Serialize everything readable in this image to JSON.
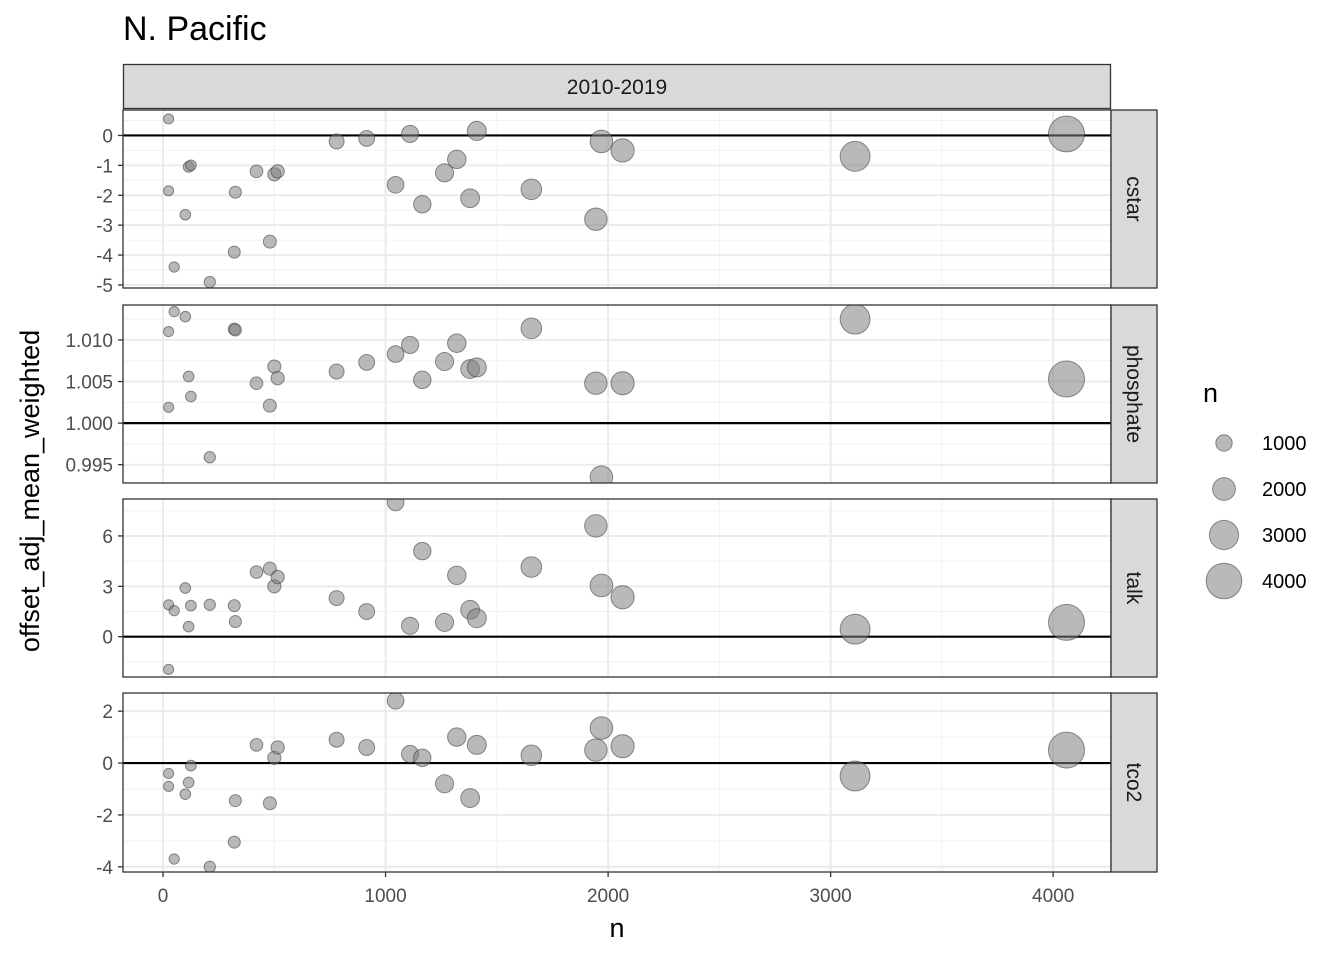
{
  "chart_data": {
    "type": "scatter",
    "title": "N. Pacific",
    "column_strip": "2010-2019",
    "xlabel": "n",
    "ylabel": "offset_adj_mean_weighted",
    "xlim": [
      -180,
      4260
    ],
    "x_ticks": [
      0,
      1000,
      2000,
      3000,
      4000
    ],
    "x_minor_ticks": [
      500,
      1500,
      2500,
      3500
    ],
    "grid": true,
    "reference_line_y": {
      "cstar": 0,
      "phosphate": 1.0,
      "talk": 0,
      "tco2": 0
    },
    "point_color": "#7f7f7f",
    "point_alpha": 0.55,
    "size_legend": {
      "title": "n",
      "values": [
        1000,
        2000,
        3000,
        4000
      ],
      "labels": [
        "1000",
        "2000",
        "3000",
        "4000"
      ]
    },
    "panels": [
      {
        "strip": "cstar",
        "ylim": [
          -5.1,
          0.85
        ],
        "y_ticks": [
          0,
          -1,
          -2,
          -3,
          -4,
          -5
        ],
        "y_tick_labels": [
          "0",
          "-1",
          "-2",
          "-3",
          "-4",
          "-5"
        ],
        "y_minor_ticks": [
          0.5,
          -0.5,
          -1.5,
          -2.5,
          -3.5,
          -4.5
        ],
        "points": [
          {
            "n": 25,
            "y": 0.55
          },
          {
            "n": 25,
            "y": -1.85
          },
          {
            "n": 50,
            "y": -4.4
          },
          {
            "n": 100,
            "y": -2.65
          },
          {
            "n": 115,
            "y": -1.05
          },
          {
            "n": 125,
            "y": -1.0
          },
          {
            "n": 210,
            "y": -4.9
          },
          {
            "n": 320,
            "y": -3.9
          },
          {
            "n": 325,
            "y": -1.9
          },
          {
            "n": 420,
            "y": -1.2
          },
          {
            "n": 480,
            "y": -3.55
          },
          {
            "n": 500,
            "y": -1.3
          },
          {
            "n": 515,
            "y": -1.2
          },
          {
            "n": 780,
            "y": -0.2
          },
          {
            "n": 915,
            "y": -0.1
          },
          {
            "n": 1045,
            "y": -1.65
          },
          {
            "n": 1110,
            "y": 0.05
          },
          {
            "n": 1165,
            "y": -2.3
          },
          {
            "n": 1265,
            "y": -1.25
          },
          {
            "n": 1320,
            "y": -0.8
          },
          {
            "n": 1380,
            "y": -2.1
          },
          {
            "n": 1410,
            "y": 0.15
          },
          {
            "n": 1655,
            "y": -1.8
          },
          {
            "n": 1945,
            "y": -2.8
          },
          {
            "n": 1970,
            "y": -0.2
          },
          {
            "n": 2065,
            "y": -0.5
          },
          {
            "n": 3110,
            "y": -0.7
          },
          {
            "n": 4060,
            "y": 0.05
          }
        ]
      },
      {
        "strip": "phosphate",
        "ylim": [
          0.9928,
          1.0142
        ],
        "y_ticks": [
          0.995,
          1.0,
          1.005,
          1.01
        ],
        "y_tick_labels": [
          "0.995",
          "1.000",
          "1.005",
          "1.010"
        ],
        "y_minor_ticks": [
          0.9975,
          1.0025,
          1.0075,
          1.0125
        ],
        "points": [
          {
            "n": 25,
            "y": 1.011
          },
          {
            "n": 25,
            "y": 1.0019
          },
          {
            "n": 50,
            "y": 1.0134
          },
          {
            "n": 100,
            "y": 1.0128
          },
          {
            "n": 115,
            "y": 1.0056
          },
          {
            "n": 125,
            "y": 1.0032
          },
          {
            "n": 210,
            "y": 0.9959
          },
          {
            "n": 320,
            "y": 1.0113
          },
          {
            "n": 325,
            "y": 1.0112
          },
          {
            "n": 420,
            "y": 1.0048
          },
          {
            "n": 480,
            "y": 1.0021
          },
          {
            "n": 500,
            "y": 1.0068
          },
          {
            "n": 515,
            "y": 1.0054
          },
          {
            "n": 780,
            "y": 1.0062
          },
          {
            "n": 915,
            "y": 1.0073
          },
          {
            "n": 1045,
            "y": 1.0083
          },
          {
            "n": 1110,
            "y": 1.0094
          },
          {
            "n": 1165,
            "y": 1.0052
          },
          {
            "n": 1265,
            "y": 1.0074
          },
          {
            "n": 1320,
            "y": 1.0096
          },
          {
            "n": 1380,
            "y": 1.0065
          },
          {
            "n": 1410,
            "y": 1.0067
          },
          {
            "n": 1655,
            "y": 1.0114
          },
          {
            "n": 1945,
            "y": 1.0048
          },
          {
            "n": 1970,
            "y": 0.9935
          },
          {
            "n": 2065,
            "y": 1.0048
          },
          {
            "n": 3110,
            "y": 1.0125
          },
          {
            "n": 4060,
            "y": 1.0053
          }
        ]
      },
      {
        "strip": "talk",
        "ylim": [
          -2.4,
          8.2
        ],
        "y_ticks": [
          0,
          3,
          6
        ],
        "y_tick_labels": [
          "0",
          "3",
          "6"
        ],
        "y_minor_ticks": [
          -1.5,
          1.5,
          4.5,
          7.5
        ],
        "points": [
          {
            "n": 25,
            "y": -1.95
          },
          {
            "n": 25,
            "y": 1.9
          },
          {
            "n": 50,
            "y": 1.55
          },
          {
            "n": 100,
            "y": 2.9
          },
          {
            "n": 115,
            "y": 0.6
          },
          {
            "n": 125,
            "y": 1.85
          },
          {
            "n": 210,
            "y": 1.9
          },
          {
            "n": 320,
            "y": 1.85
          },
          {
            "n": 325,
            "y": 0.9
          },
          {
            "n": 420,
            "y": 3.85
          },
          {
            "n": 480,
            "y": 4.05
          },
          {
            "n": 500,
            "y": 3.0
          },
          {
            "n": 515,
            "y": 3.55
          },
          {
            "n": 780,
            "y": 2.3
          },
          {
            "n": 915,
            "y": 1.5
          },
          {
            "n": 1045,
            "y": 8.0
          },
          {
            "n": 1110,
            "y": 0.65
          },
          {
            "n": 1165,
            "y": 5.1
          },
          {
            "n": 1265,
            "y": 0.85
          },
          {
            "n": 1320,
            "y": 3.65
          },
          {
            "n": 1380,
            "y": 1.6
          },
          {
            "n": 1410,
            "y": 1.1
          },
          {
            "n": 1655,
            "y": 4.15
          },
          {
            "n": 1945,
            "y": 6.6
          },
          {
            "n": 1970,
            "y": 3.05
          },
          {
            "n": 2065,
            "y": 2.35
          },
          {
            "n": 3110,
            "y": 0.45
          },
          {
            "n": 4060,
            "y": 0.85
          }
        ]
      },
      {
        "strip": "tco2",
        "ylim": [
          -4.2,
          2.7
        ],
        "y_ticks": [
          -4,
          -2,
          0,
          2
        ],
        "y_tick_labels": [
          "-4",
          "-2",
          "0",
          "2"
        ],
        "y_minor_ticks": [
          -3,
          -1,
          1
        ],
        "points": [
          {
            "n": 25,
            "y": -0.4
          },
          {
            "n": 25,
            "y": -0.9
          },
          {
            "n": 50,
            "y": -3.7
          },
          {
            "n": 100,
            "y": -1.2
          },
          {
            "n": 115,
            "y": -0.75
          },
          {
            "n": 125,
            "y": -0.1
          },
          {
            "n": 210,
            "y": -4.0
          },
          {
            "n": 320,
            "y": -3.05
          },
          {
            "n": 325,
            "y": -1.45
          },
          {
            "n": 420,
            "y": 0.7
          },
          {
            "n": 480,
            "y": -1.55
          },
          {
            "n": 500,
            "y": 0.2
          },
          {
            "n": 515,
            "y": 0.6
          },
          {
            "n": 780,
            "y": 0.9
          },
          {
            "n": 915,
            "y": 0.6
          },
          {
            "n": 1045,
            "y": 2.4
          },
          {
            "n": 1110,
            "y": 0.35
          },
          {
            "n": 1165,
            "y": 0.2
          },
          {
            "n": 1265,
            "y": -0.8
          },
          {
            "n": 1320,
            "y": 1.0
          },
          {
            "n": 1380,
            "y": -1.35
          },
          {
            "n": 1410,
            "y": 0.7
          },
          {
            "n": 1655,
            "y": 0.3
          },
          {
            "n": 1945,
            "y": 0.5
          },
          {
            "n": 1970,
            "y": 1.35
          },
          {
            "n": 2065,
            "y": 0.65
          },
          {
            "n": 3110,
            "y": -0.5
          },
          {
            "n": 4060,
            "y": 0.5
          }
        ]
      }
    ]
  }
}
